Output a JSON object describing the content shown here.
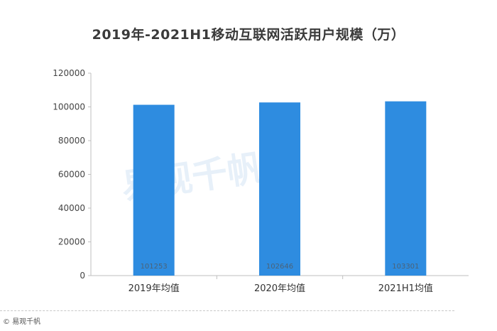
{
  "chart_data": {
    "type": "bar",
    "title": "2019年-2021H1移动互联网活跃用户规模（万）",
    "categories": [
      "2019年均值",
      "2020年均值",
      "2021H1均值"
    ],
    "values": [
      101253,
      102646,
      103301
    ],
    "data_labels": [
      "101253",
      "102646",
      "103301"
    ],
    "yticks": [
      0,
      20000,
      40000,
      60000,
      80000,
      100000,
      120000
    ],
    "ylim": [
      0,
      120000
    ],
    "xlabel": "",
    "ylabel": "",
    "bar_color": "#2e8ce0",
    "grid": false,
    "legend": "none"
  },
  "footer": {
    "source": "© 易观千帆"
  },
  "watermark": {
    "text": "易观千帆"
  }
}
